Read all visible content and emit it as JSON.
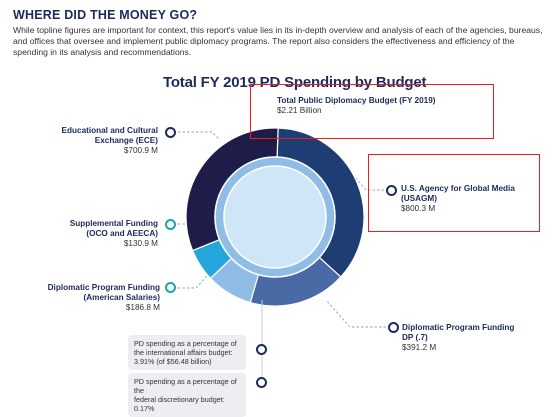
{
  "header": {
    "heading": "WHERE DID THE MONEY GO?",
    "intro": "While topline figures are important for context, this report's value lies in its in-depth overview and analysis of each of the agencies, bureaus, and offices that oversee and implement public diplomacy programs. The report also considers the effectiveness and efficiency of the spending in its analysis and recommendations."
  },
  "chart_data": {
    "type": "pie",
    "title": "Total FY 2019 PD Spending by Budget",
    "total": {
      "label": "Total Public Diplomacy Budget (FY 2019)",
      "value_text": "$2.21 Billion",
      "value": 2210
    },
    "unit": "$M",
    "slices": [
      {
        "name": "U.S. Agency for Global Media (USAGM)",
        "value_text": "$800.3 M",
        "value": 800.3,
        "color": "#1e3d73"
      },
      {
        "name": "Diplomatic Program Funding DP (.7)",
        "value_text": "$391.2 M",
        "value": 391.2,
        "color": "#4a6aa5"
      },
      {
        "name": "Diplomatic Program Funding (American Salaries)",
        "value_text": "$186.8 M",
        "value": 186.8,
        "color": "#8fbde6"
      },
      {
        "name": "Supplemental Funding (OCO and AEECA)",
        "value_text": "$130.9 M",
        "value": 130.9,
        "color": "#24a6dc"
      },
      {
        "name": "Educational and Cultural Exchange (ECE)",
        "value_text": "$700.9 M",
        "value": 700.9,
        "color": "#1e1d4a"
      }
    ],
    "inner_color": "#8fbde6",
    "center_color": "#cfe6f7"
  },
  "labels": {
    "ece_title_1": "Educational and Cultural",
    "ece_title_2": "Exchange (ECE)",
    "ece_value": "$700.9 M",
    "supp_title_1": "Supplemental Funding",
    "supp_title_2": "(OCO and AEECA)",
    "supp_value": "$130.9 M",
    "dpf_title_1": "Diplomatic Program Funding",
    "dpf_title_2": "(American Salaries)",
    "dpf_value": "$186.8 M",
    "usagm_title_1": "U.S. Agency for Global Media",
    "usagm_title_2": "(USAGM)",
    "usagm_value": "$800.3 M",
    "dp7_title_1": "Diplomatic Program Funding",
    "dp7_title_2": "DP (.7)",
    "dp7_value": "$391.2 M"
  },
  "notes": [
    {
      "line1": "PD spending as a percentage of",
      "line2": "the international affairs budget:",
      "line3": "3.91% (of $56.48 billion)"
    },
    {
      "line1": "PD spending as a percentage of the",
      "line2": "federal discretionary budget: 0.17%"
    }
  ]
}
